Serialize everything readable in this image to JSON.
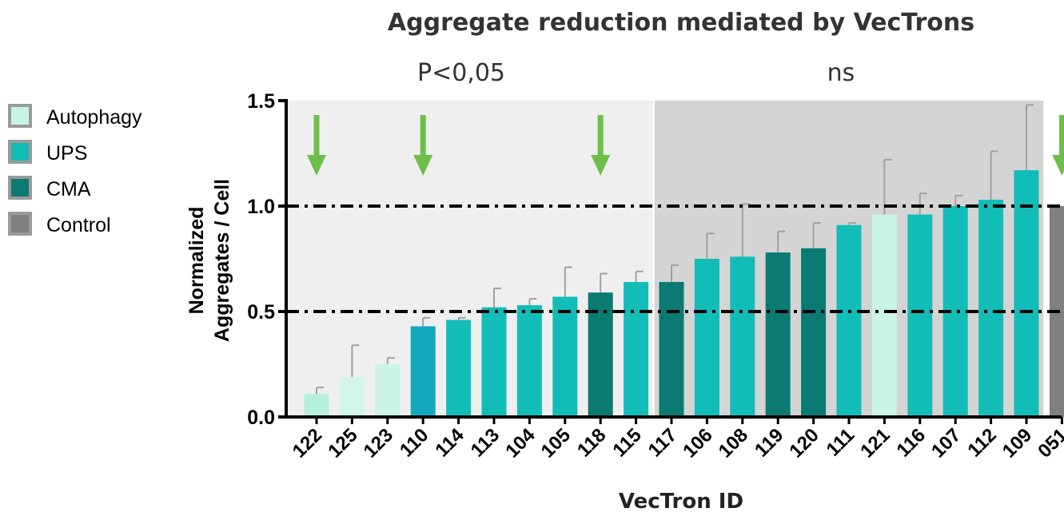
{
  "chart_data": {
    "type": "bar",
    "title": "Aggregate reduction mediated by VecTrons",
    "xlabel": "VecTron ID",
    "ylabel_lines": [
      "Normalized",
      "Aggregates / Cell"
    ],
    "ylim": [
      0,
      1.5
    ],
    "yticks": [
      "0.0",
      "0.5",
      "1.0",
      "1.5"
    ],
    "reference_lines": [
      0.5,
      1.0
    ],
    "regions": [
      {
        "label": "P<0,05",
        "from": "122",
        "to": "115",
        "color": "#efefef"
      },
      {
        "label": "ns",
        "from": "117",
        "to": "109",
        "color": "#d4d4d4"
      }
    ],
    "legend": {
      "position": "left",
      "entries": [
        {
          "name": "Autophagy",
          "color": "#c9f4e6"
        },
        {
          "name": "UPS",
          "color": "#12bdb8"
        },
        {
          "name": "CMA",
          "color": "#0b7a73"
        },
        {
          "name": "Control",
          "color": "#808080"
        }
      ]
    },
    "arrow_color": "#6cc04a",
    "arrows_at": [
      "122",
      "110",
      "118",
      "051"
    ],
    "categories": [
      "122",
      "125",
      "123",
      "110",
      "114",
      "113",
      "104",
      "105",
      "118",
      "115",
      "117",
      "106",
      "108",
      "119",
      "120",
      "111",
      "121",
      "116",
      "107",
      "112",
      "109",
      "051"
    ],
    "values": [
      0.11,
      0.19,
      0.25,
      0.43,
      0.46,
      0.52,
      0.53,
      0.57,
      0.59,
      0.64,
      0.64,
      0.75,
      0.76,
      0.78,
      0.8,
      0.91,
      0.96,
      0.96,
      1.0,
      1.03,
      1.17,
      1.0
    ],
    "errors": [
      0.03,
      0.15,
      0.03,
      0.04,
      0.01,
      0.09,
      0.03,
      0.14,
      0.09,
      0.05,
      0.08,
      0.12,
      0.25,
      0.1,
      0.12,
      0.01,
      0.26,
      0.1,
      0.05,
      0.23,
      0.31,
      0.0
    ],
    "bar_colors": [
      "#b5f0db",
      "#d2f5ea",
      "#c9f4e6",
      "#12a8bd",
      "#12bdb8",
      "#12bdb8",
      "#12bdb8",
      "#12bdb8",
      "#0b7a73",
      "#12bdb8",
      "#0b7a73",
      "#12bdb8",
      "#12bdb8",
      "#0b7a73",
      "#0b7a73",
      "#12bdb8",
      "#c9f4e6",
      "#12bdb8",
      "#12bdb8",
      "#12bdb8",
      "#12bdb8",
      "#808080"
    ]
  }
}
